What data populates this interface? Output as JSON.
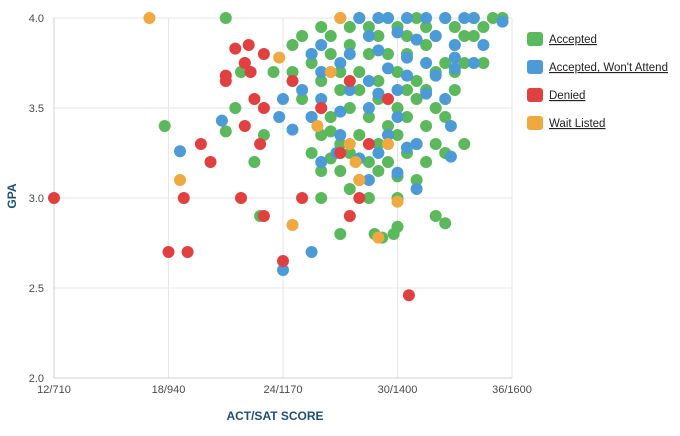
{
  "chart_data": {
    "type": "scatter",
    "xlabel": "ACT/SAT SCORE",
    "ylabel": "GPA",
    "xlim": [
      12,
      36
    ],
    "ylim": [
      2.0,
      4.0
    ],
    "x_ticks": [
      {
        "value": 12,
        "label": "12/710"
      },
      {
        "value": 18,
        "label": "18/940"
      },
      {
        "value": 24,
        "label": "24/1170"
      },
      {
        "value": 30,
        "label": "30/1400"
      },
      {
        "value": 36,
        "label": "36/1600"
      }
    ],
    "y_ticks": [
      {
        "value": 2.0,
        "label": "2.0"
      },
      {
        "value": 2.5,
        "label": "2.5"
      },
      {
        "value": 3.0,
        "label": "3.0"
      },
      {
        "value": 3.5,
        "label": "3.5"
      },
      {
        "value": 4.0,
        "label": "4.0"
      }
    ],
    "grid": true,
    "legend_position": "right",
    "series": [
      {
        "name": "Accepted",
        "color": "#5cb85c",
        "points": [
          [
            21.0,
            4.0
          ],
          [
            25.0,
            3.9
          ],
          [
            26.0,
            3.95
          ],
          [
            26.5,
            3.9
          ],
          [
            27.0,
            4.0
          ],
          [
            27.5,
            3.95
          ],
          [
            28.0,
            4.0
          ],
          [
            28.5,
            3.95
          ],
          [
            29.0,
            3.9
          ],
          [
            29.5,
            4.0
          ],
          [
            30.0,
            3.95
          ],
          [
            30.5,
            3.9
          ],
          [
            31.0,
            4.0
          ],
          [
            31.5,
            3.95
          ],
          [
            32.0,
            3.9
          ],
          [
            32.5,
            4.0
          ],
          [
            33.0,
            3.95
          ],
          [
            33.5,
            3.9
          ],
          [
            34.0,
            4.0
          ],
          [
            34.5,
            3.95
          ],
          [
            35.0,
            4.0
          ],
          [
            35.5,
            4.0
          ],
          [
            34.0,
            3.9
          ],
          [
            33.0,
            3.85
          ],
          [
            24.5,
            3.85
          ],
          [
            25.5,
            3.8
          ],
          [
            26.5,
            3.8
          ],
          [
            27.5,
            3.85
          ],
          [
            28.5,
            3.8
          ],
          [
            29.5,
            3.8
          ],
          [
            30.5,
            3.8
          ],
          [
            31.5,
            3.85
          ],
          [
            32.5,
            3.75
          ],
          [
            33.5,
            3.75
          ],
          [
            34.5,
            3.75
          ],
          [
            23.5,
            3.7
          ],
          [
            24.5,
            3.7
          ],
          [
            25.5,
            3.75
          ],
          [
            26.0,
            3.65
          ],
          [
            27.0,
            3.7
          ],
          [
            28.0,
            3.7
          ],
          [
            29.0,
            3.65
          ],
          [
            30.0,
            3.7
          ],
          [
            31.0,
            3.65
          ],
          [
            32.0,
            3.7
          ],
          [
            33.0,
            3.7
          ],
          [
            21.8,
            3.7
          ],
          [
            22.0,
            3.75
          ],
          [
            25.0,
            3.55
          ],
          [
            26.0,
            3.5
          ],
          [
            27.0,
            3.6
          ],
          [
            28.0,
            3.6
          ],
          [
            29.0,
            3.55
          ],
          [
            30.0,
            3.5
          ],
          [
            31.0,
            3.55
          ],
          [
            32.0,
            3.5
          ],
          [
            33.0,
            3.6
          ],
          [
            30.5,
            3.6
          ],
          [
            31.5,
            3.6
          ],
          [
            21.5,
            3.5
          ],
          [
            25.5,
            3.45
          ],
          [
            26.5,
            3.45
          ],
          [
            27.5,
            3.5
          ],
          [
            28.5,
            3.45
          ],
          [
            29.5,
            3.4
          ],
          [
            30.5,
            3.45
          ],
          [
            31.5,
            3.4
          ],
          [
            32.5,
            3.45
          ],
          [
            17.8,
            3.4
          ],
          [
            21.0,
            3.37
          ],
          [
            23.0,
            3.35
          ],
          [
            26.0,
            3.35
          ],
          [
            26.5,
            3.37
          ],
          [
            27.0,
            3.3
          ],
          [
            28.0,
            3.35
          ],
          [
            29.0,
            3.3
          ],
          [
            30.0,
            3.35
          ],
          [
            31.0,
            3.3
          ],
          [
            32.0,
            3.3
          ],
          [
            33.5,
            3.3
          ],
          [
            22.5,
            3.2
          ],
          [
            25.5,
            3.25
          ],
          [
            26.5,
            3.22
          ],
          [
            27.5,
            3.25
          ],
          [
            28.5,
            3.2
          ],
          [
            29.5,
            3.2
          ],
          [
            30.5,
            3.25
          ],
          [
            31.5,
            3.2
          ],
          [
            32.5,
            3.25
          ],
          [
            26.0,
            3.15
          ],
          [
            27.0,
            3.15
          ],
          [
            28.0,
            3.1
          ],
          [
            29.0,
            3.15
          ],
          [
            30.0,
            3.12
          ],
          [
            31.0,
            3.1
          ],
          [
            22.8,
            2.9
          ],
          [
            26.0,
            3.0
          ],
          [
            27.5,
            3.05
          ],
          [
            28.5,
            3.0
          ],
          [
            30.0,
            3.0
          ],
          [
            27.0,
            2.8
          ],
          [
            28.8,
            2.8
          ],
          [
            29.2,
            2.78
          ],
          [
            29.8,
            2.8
          ],
          [
            30.0,
            2.84
          ],
          [
            32.0,
            2.9
          ],
          [
            32.5,
            2.86
          ]
        ]
      },
      {
        "name": "Accepted, Won't Attend",
        "color": "#4d9bd6",
        "points": [
          [
            28.0,
            4.0
          ],
          [
            29.0,
            4.0
          ],
          [
            29.5,
            4.0
          ],
          [
            30.5,
            4.0
          ],
          [
            31.5,
            4.0
          ],
          [
            32.5,
            4.0
          ],
          [
            33.5,
            4.0
          ],
          [
            34.0,
            4.0
          ],
          [
            35.5,
            3.98
          ],
          [
            28.5,
            3.9
          ],
          [
            30.0,
            3.92
          ],
          [
            31.0,
            3.88
          ],
          [
            32.0,
            3.9
          ],
          [
            33.0,
            3.85
          ],
          [
            34.5,
            3.85
          ],
          [
            25.5,
            3.8
          ],
          [
            26.0,
            3.85
          ],
          [
            27.5,
            3.8
          ],
          [
            29.0,
            3.82
          ],
          [
            30.5,
            3.78
          ],
          [
            31.5,
            3.75
          ],
          [
            33.0,
            3.78
          ],
          [
            34.0,
            3.75
          ],
          [
            26.0,
            3.7
          ],
          [
            27.0,
            3.75
          ],
          [
            28.5,
            3.65
          ],
          [
            29.5,
            3.72
          ],
          [
            30.5,
            3.68
          ],
          [
            32.0,
            3.68
          ],
          [
            33.0,
            3.72
          ],
          [
            24.0,
            3.55
          ],
          [
            25.0,
            3.6
          ],
          [
            26.0,
            3.55
          ],
          [
            27.5,
            3.6
          ],
          [
            29.0,
            3.58
          ],
          [
            30.0,
            3.6
          ],
          [
            31.5,
            3.58
          ],
          [
            32.5,
            3.55
          ],
          [
            23.8,
            3.45
          ],
          [
            25.5,
            3.45
          ],
          [
            27.0,
            3.48
          ],
          [
            28.5,
            3.5
          ],
          [
            30.0,
            3.45
          ],
          [
            20.8,
            3.43
          ],
          [
            24.5,
            3.38
          ],
          [
            27.0,
            3.35
          ],
          [
            29.5,
            3.35
          ],
          [
            31.0,
            3.3
          ],
          [
            32.8,
            3.4
          ],
          [
            18.6,
            3.26
          ],
          [
            26.0,
            3.2
          ],
          [
            26.8,
            3.25
          ],
          [
            28.0,
            3.22
          ],
          [
            29.0,
            3.25
          ],
          [
            30.5,
            3.28
          ],
          [
            28.5,
            3.1
          ],
          [
            30.0,
            3.14
          ],
          [
            31.0,
            3.05
          ],
          [
            32.8,
            3.23
          ],
          [
            25.5,
            2.7
          ],
          [
            24.0,
            2.6
          ]
        ]
      },
      {
        "name": "Denied",
        "color": "#e04040",
        "points": [
          [
            12.0,
            3.0
          ],
          [
            18.0,
            2.7
          ],
          [
            19.0,
            2.7
          ],
          [
            18.8,
            3.0
          ],
          [
            19.7,
            3.3
          ],
          [
            20.2,
            3.2
          ],
          [
            21.0,
            3.65
          ],
          [
            21.0,
            3.68
          ],
          [
            21.5,
            3.83
          ],
          [
            21.8,
            3.0
          ],
          [
            22.0,
            3.75
          ],
          [
            22.2,
            3.85
          ],
          [
            22.0,
            3.4
          ],
          [
            22.3,
            3.7
          ],
          [
            22.5,
            3.55
          ],
          [
            22.8,
            3.3
          ],
          [
            23.0,
            3.8
          ],
          [
            23.0,
            3.5
          ],
          [
            23.0,
            2.9
          ],
          [
            24.0,
            2.65
          ],
          [
            24.5,
            3.65
          ],
          [
            25.0,
            3.0
          ],
          [
            26.0,
            3.5
          ],
          [
            27.0,
            3.25
          ],
          [
            27.5,
            3.65
          ],
          [
            27.5,
            2.9
          ],
          [
            28.0,
            3.0
          ],
          [
            28.5,
            3.3
          ],
          [
            29.5,
            3.55
          ],
          [
            30.6,
            2.46
          ]
        ]
      },
      {
        "name": "Wait Listed",
        "color": "#f0a840",
        "points": [
          [
            17.0,
            4.0
          ],
          [
            18.6,
            3.1
          ],
          [
            23.8,
            3.78
          ],
          [
            24.5,
            2.85
          ],
          [
            25.8,
            3.4
          ],
          [
            26.5,
            3.7
          ],
          [
            27.0,
            4.0
          ],
          [
            27.5,
            3.3
          ],
          [
            27.8,
            3.2
          ],
          [
            28.0,
            3.1
          ],
          [
            29.0,
            2.78
          ],
          [
            29.5,
            3.3
          ],
          [
            30.0,
            2.98
          ]
        ]
      }
    ]
  }
}
